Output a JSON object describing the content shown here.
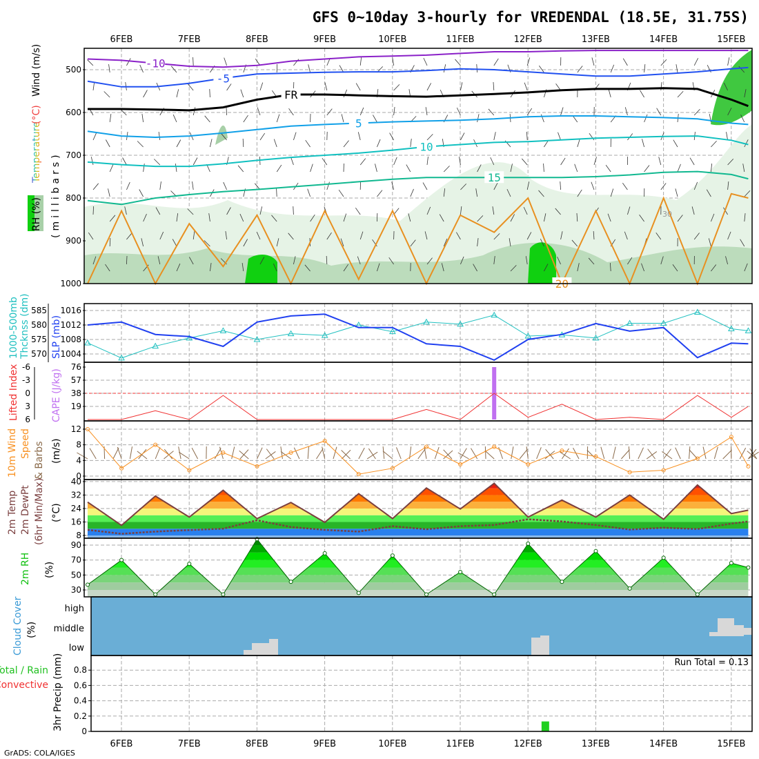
{
  "title": "GFS 0~10day 3-hourly for VREDENDAL (18.5E, 31.75S)",
  "footer": "GrADS: COLA/IGES",
  "days": [
    "6FEB",
    "7FEB",
    "8FEB",
    "9FEB",
    "10FEB",
    "11FEB",
    "12FEB",
    "13FEB",
    "14FEB",
    "15FEB"
  ],
  "colors": {
    "slp": "#2040f0",
    "thickness": "#20c0c0",
    "lifted_index": "#f03030",
    "cape": "#c070f0",
    "wind": "#f89020",
    "temp_line": "#7a3f3f",
    "cloud_bg": "#6aaed6",
    "cloud_block": "#d8d8d8",
    "precip": "#20d020"
  },
  "chart_data": [
    {
      "id": "upper_air",
      "type": "contour",
      "labels": {
        "rh": "RH (%)",
        "temperature": "Temperature",
        "temp_unit": "(°C)",
        "wind": "Wind (m/s)",
        "pressure": "(millibars)"
      },
      "yticks": [
        500,
        600,
        700,
        800,
        900,
        1000
      ],
      "ytick_labels": [
        "500",
        "600",
        "700",
        "800",
        "900",
        "1000"
      ],
      "hours": [
        0,
        12,
        24,
        36,
        48,
        60,
        72,
        84,
        96,
        108,
        120,
        132,
        144,
        156,
        168,
        180,
        192,
        204,
        216,
        228,
        234
      ],
      "isotherms": [
        {
          "label": "-10",
          "color": "#8a20c8",
          "pressure": [
            475,
            478,
            485,
            492,
            494,
            490,
            480,
            475,
            470,
            468,
            466,
            462,
            458,
            458,
            456,
            455,
            455,
            455,
            455,
            455,
            455
          ]
        },
        {
          "label": "-5",
          "color": "#2050f0",
          "pressure": [
            527,
            540,
            540,
            532,
            520,
            510,
            508,
            506,
            505,
            505,
            502,
            498,
            500,
            505,
            510,
            515,
            515,
            510,
            505,
            498,
            495
          ]
        },
        {
          "label": "FR",
          "color": "#000000",
          "pressure": [
            592,
            592,
            593,
            595,
            588,
            570,
            558,
            558,
            560,
            562,
            563,
            560,
            557,
            553,
            548,
            545,
            545,
            543,
            545,
            570,
            585
          ]
        },
        {
          "label": "5",
          "color": "#10a0e8",
          "pressure": [
            644,
            655,
            658,
            655,
            648,
            640,
            632,
            628,
            625,
            622,
            620,
            618,
            615,
            610,
            608,
            608,
            610,
            612,
            615,
            625,
            628
          ]
        },
        {
          "label": "10",
          "color": "#10c0c0",
          "pressure": [
            716,
            722,
            726,
            726,
            720,
            712,
            705,
            700,
            695,
            688,
            680,
            675,
            670,
            668,
            664,
            660,
            658,
            656,
            655,
            665,
            675
          ]
        },
        {
          "label": "15",
          "color": "#10b890",
          "pressure": [
            806,
            815,
            800,
            792,
            785,
            780,
            774,
            768,
            762,
            756,
            752,
            752,
            752,
            752,
            752,
            750,
            746,
            740,
            738,
            745,
            755
          ]
        },
        {
          "label": "20",
          "color": "#e89020",
          "pressure": [
            1000,
            830,
            1000,
            860,
            960,
            840,
            1000,
            830,
            990,
            830,
            1000,
            840,
            880,
            800,
            1000,
            830,
            1000,
            800,
            1000,
            790,
            800
          ]
        }
      ],
      "rh_contour_label": "30"
    },
    {
      "id": "thickness_slp",
      "type": "line",
      "labels": {
        "thickness": "1000-500mb",
        "thickness2": "Thcknss (dm)",
        "slp": "SLP (mb)"
      },
      "hours": [
        0,
        12,
        24,
        36,
        48,
        60,
        72,
        84,
        96,
        108,
        120,
        132,
        144,
        156,
        168,
        180,
        192,
        204,
        216,
        228,
        234
      ],
      "series": [
        {
          "name": "SLP (mb)",
          "values": [
            1012,
            1012.8,
            1009.4,
            1008.8,
            1006.1,
            1012.8,
            1014.5,
            1015,
            1011.3,
            1011.3,
            1006.8,
            1006.1,
            1002.3,
            1008,
            1009.4,
            1012.4,
            1010.3,
            1011.3,
            1003,
            1007,
            1006.8
          ]
        },
        {
          "name": "1000-500mb Thickness (dm)",
          "values": [
            573.8,
            568.6,
            572.7,
            575.5,
            578,
            575,
            577,
            576.4,
            580,
            577.7,
            581,
            580.3,
            583.4,
            576.2,
            576.6,
            575.5,
            580.6,
            580.6,
            584.4,
            578.7,
            578
          ]
        }
      ],
      "slp_ticks": [
        "1016",
        "1012",
        "1008",
        "1004"
      ],
      "thickness_ticks": [
        "585",
        "580",
        "575",
        "570"
      ]
    },
    {
      "id": "li_cape",
      "type": "line",
      "labels": {
        "li": "Lifted Index",
        "cape": "CAPE (J/kg)"
      },
      "hours": [
        0,
        12,
        24,
        36,
        48,
        60,
        72,
        84,
        96,
        108,
        120,
        132,
        144,
        156,
        168,
        180,
        192,
        204,
        216,
        228,
        234
      ],
      "series": [
        {
          "name": "Lifted Index",
          "values": [
            6,
            6,
            4,
            6,
            0.5,
            6,
            6,
            6,
            6,
            6,
            3.7,
            6,
            0,
            5.5,
            2.5,
            6,
            5.5,
            6,
            0.5,
            5.5,
            3
          ]
        },
        {
          "name": "CAPE (J/kg)",
          "bars": [
            {
              "hour": 144,
              "value": 75
            }
          ]
        }
      ],
      "li_ticks": [
        "-6",
        "-3",
        "0",
        "3",
        "6"
      ],
      "cape_ticks": [
        "76",
        "57",
        "38",
        "19"
      ]
    },
    {
      "id": "wind10m",
      "type": "line",
      "labels": {
        "a": "10m Wind",
        "b": "Speed",
        "c": "& Barbs",
        "unit": "(m/s)"
      },
      "hours": [
        0,
        12,
        24,
        36,
        48,
        60,
        72,
        84,
        96,
        108,
        120,
        132,
        144,
        156,
        168,
        180,
        192,
        204,
        216,
        228,
        234
      ],
      "series": [
        {
          "name": "10m Wind Speed (m/s)",
          "values": [
            12,
            2,
            8,
            1.5,
            6,
            2.5,
            6,
            9,
            0.5,
            2,
            7.5,
            3,
            7.5,
            3,
            6.5,
            5,
            1,
            1.5,
            4.5,
            10,
            2.5
          ]
        }
      ],
      "ticks": [
        "12",
        "8",
        "4",
        "0"
      ]
    },
    {
      "id": "temp2m",
      "type": "area",
      "labels": {
        "a": "2m Temp",
        "b": "2m DewPt",
        "c": "(6hr Min/Max)",
        "unit": "(°C)"
      },
      "hours": [
        0,
        12,
        24,
        36,
        48,
        60,
        72,
        84,
        96,
        108,
        120,
        132,
        144,
        156,
        168,
        180,
        192,
        204,
        216,
        228,
        234
      ],
      "series": [
        {
          "name": "2m Temp",
          "values": [
            27.8,
            14,
            31.4,
            18.9,
            34.8,
            18,
            27.6,
            15.8,
            32.8,
            18,
            36.2,
            23.7,
            39,
            18.9,
            29,
            18.9,
            32,
            17.6,
            38,
            21,
            23
          ]
        },
        {
          "name": "2m DewPt",
          "values": [
            11.3,
            9,
            10.3,
            11.2,
            12,
            17,
            13,
            11.3,
            10.3,
            13.5,
            11.7,
            13.5,
            14.2,
            17.6,
            16.3,
            14.2,
            11.5,
            12.6,
            11.8,
            15,
            16.3
          ]
        }
      ],
      "ticks": [
        "40",
        "32",
        "24",
        "16",
        "8"
      ]
    },
    {
      "id": "rh2m",
      "type": "area",
      "labels": {
        "a": "2m RH",
        "unit": "(%)"
      },
      "hours": [
        0,
        12,
        24,
        36,
        48,
        60,
        72,
        84,
        96,
        108,
        120,
        132,
        144,
        156,
        168,
        180,
        192,
        204,
        216,
        228,
        234
      ],
      "series": [
        {
          "name": "2m RH (%)",
          "values": [
            37,
            70,
            24,
            65,
            24,
            98,
            41,
            79,
            26,
            76,
            24,
            54,
            24,
            92,
            41,
            82,
            32,
            73,
            24,
            66,
            60
          ]
        }
      ],
      "ticks": [
        "90",
        "70",
        "50",
        "30"
      ]
    },
    {
      "id": "cloud",
      "type": "bar",
      "labels": {
        "a": "Cloud Cover",
        "unit": "(%)",
        "high": "high",
        "middle": "middle",
        "low": "low"
      }
    },
    {
      "id": "precip",
      "type": "bar",
      "labels": {
        "a": "Total / Rain",
        "b": "Convective",
        "c": "3hr Precip (mm)",
        "run_total": "Run Total = 0.13"
      },
      "bars": [
        {
          "hour": 162,
          "value": 0.13
        }
      ],
      "ticks": [
        "0.8",
        "0.6",
        "0.4",
        "0.2",
        "0"
      ]
    }
  ]
}
